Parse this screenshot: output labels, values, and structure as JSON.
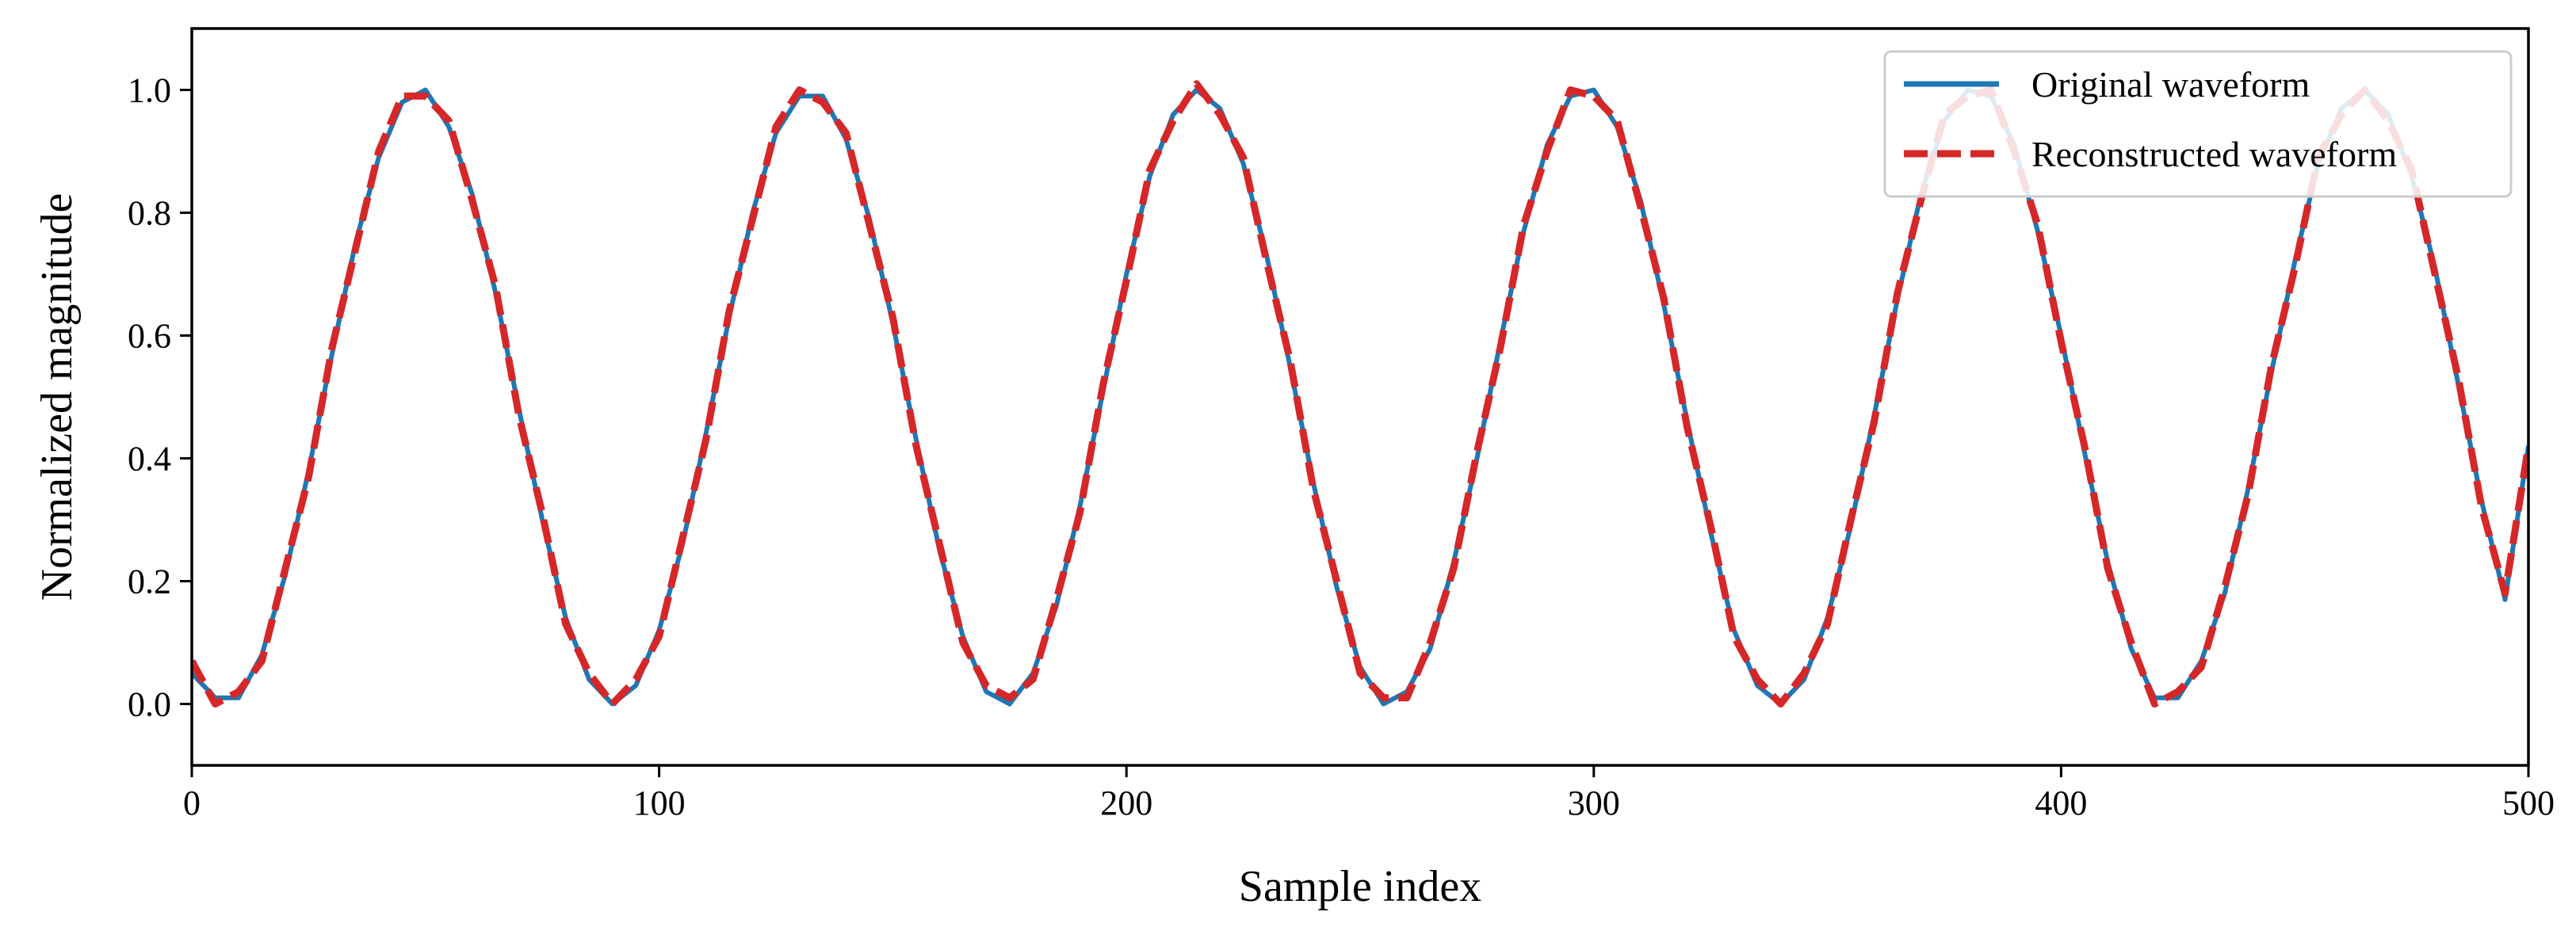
{
  "chart_data": {
    "type": "line",
    "title": "",
    "xlabel": "Sample index",
    "ylabel": "Normalized magnitude",
    "xlim": [
      0,
      500
    ],
    "ylim": [
      -0.1,
      1.1
    ],
    "xticks": [
      0,
      100,
      200,
      300,
      400,
      500
    ],
    "xtick_labels": [
      "0",
      "100",
      "200",
      "300",
      "400",
      "500"
    ],
    "yticks": [
      0.0,
      0.2,
      0.4,
      0.6,
      0.8,
      1.0
    ],
    "ytick_labels": [
      "0.0",
      "0.2",
      "0.4",
      "0.6",
      "0.8",
      "1.0"
    ],
    "grid": false,
    "legend_position": "top-right",
    "x": [
      0,
      5,
      10,
      15,
      20,
      25,
      30,
      35,
      40,
      45,
      50,
      55,
      60,
      65,
      70,
      75,
      80,
      85,
      90,
      95,
      100,
      105,
      110,
      115,
      120,
      125,
      130,
      135,
      140,
      145,
      150,
      155,
      160,
      165,
      170,
      175,
      180,
      185,
      190,
      195,
      200,
      205,
      210,
      215,
      220,
      225,
      230,
      235,
      240,
      245,
      250,
      255,
      260,
      265,
      270,
      275,
      280,
      285,
      290,
      295,
      300,
      305,
      310,
      315,
      320,
      325,
      330,
      335,
      340,
      345,
      350,
      355,
      360,
      365,
      370,
      375,
      380,
      385,
      390,
      395,
      400,
      405,
      410,
      415,
      420,
      425,
      430,
      435,
      440,
      445,
      450,
      455,
      460,
      465,
      470,
      475,
      480,
      485,
      490,
      495,
      500
    ],
    "series": [
      {
        "name": "Original waveform",
        "color": "#1f77b4",
        "style": "solid",
        "values": [
          0.05,
          0.01,
          0.01,
          0.08,
          0.21,
          0.38,
          0.57,
          0.75,
          0.89,
          0.98,
          1.0,
          0.94,
          0.83,
          0.67,
          0.48,
          0.3,
          0.14,
          0.04,
          0.0,
          0.03,
          0.12,
          0.26,
          0.44,
          0.63,
          0.8,
          0.93,
          0.99,
          0.99,
          0.92,
          0.79,
          0.62,
          0.43,
          0.25,
          0.11,
          0.02,
          0.0,
          0.05,
          0.16,
          0.32,
          0.51,
          0.7,
          0.86,
          0.96,
          1.0,
          0.97,
          0.88,
          0.73,
          0.55,
          0.36,
          0.19,
          0.06,
          0.0,
          0.02,
          0.09,
          0.23,
          0.4,
          0.59,
          0.77,
          0.91,
          0.99,
          1.0,
          0.94,
          0.82,
          0.65,
          0.46,
          0.28,
          0.12,
          0.03,
          0.0,
          0.04,
          0.14,
          0.29,
          0.47,
          0.66,
          0.83,
          0.95,
          1.0,
          0.99,
          0.91,
          0.77,
          0.6,
          0.41,
          0.23,
          0.09,
          0.01,
          0.01,
          0.07,
          0.18,
          0.35,
          0.54,
          0.72,
          0.88,
          0.97,
          1.0,
          0.96,
          0.86,
          0.71,
          0.52,
          0.33,
          0.17,
          0.42
        ]
      },
      {
        "name": "Reconstructed waveform",
        "color": "#d62728",
        "style": "dashed",
        "values": [
          0.07,
          0.0,
          0.02,
          0.07,
          0.22,
          0.37,
          0.58,
          0.74,
          0.9,
          0.99,
          0.99,
          0.95,
          0.82,
          0.68,
          0.47,
          0.31,
          0.13,
          0.05,
          0.0,
          0.04,
          0.11,
          0.27,
          0.43,
          0.64,
          0.79,
          0.94,
          1.0,
          0.98,
          0.93,
          0.78,
          0.63,
          0.42,
          0.26,
          0.1,
          0.03,
          0.01,
          0.04,
          0.17,
          0.31,
          0.52,
          0.69,
          0.87,
          0.95,
          1.01,
          0.96,
          0.89,
          0.72,
          0.56,
          0.35,
          0.2,
          0.05,
          0.01,
          0.01,
          0.1,
          0.22,
          0.41,
          0.58,
          0.78,
          0.9,
          1.0,
          0.99,
          0.95,
          0.81,
          0.66,
          0.45,
          0.29,
          0.11,
          0.04,
          0.0,
          0.05,
          0.13,
          0.3,
          0.46,
          0.67,
          0.82,
          0.96,
          0.99,
          1.0,
          0.9,
          0.78,
          0.59,
          0.42,
          0.22,
          0.1,
          0.0,
          0.02,
          0.06,
          0.19,
          0.34,
          0.55,
          0.71,
          0.89,
          0.96,
          1.0,
          0.95,
          0.87,
          0.7,
          0.53,
          0.32,
          0.18,
          0.42
        ]
      }
    ]
  }
}
